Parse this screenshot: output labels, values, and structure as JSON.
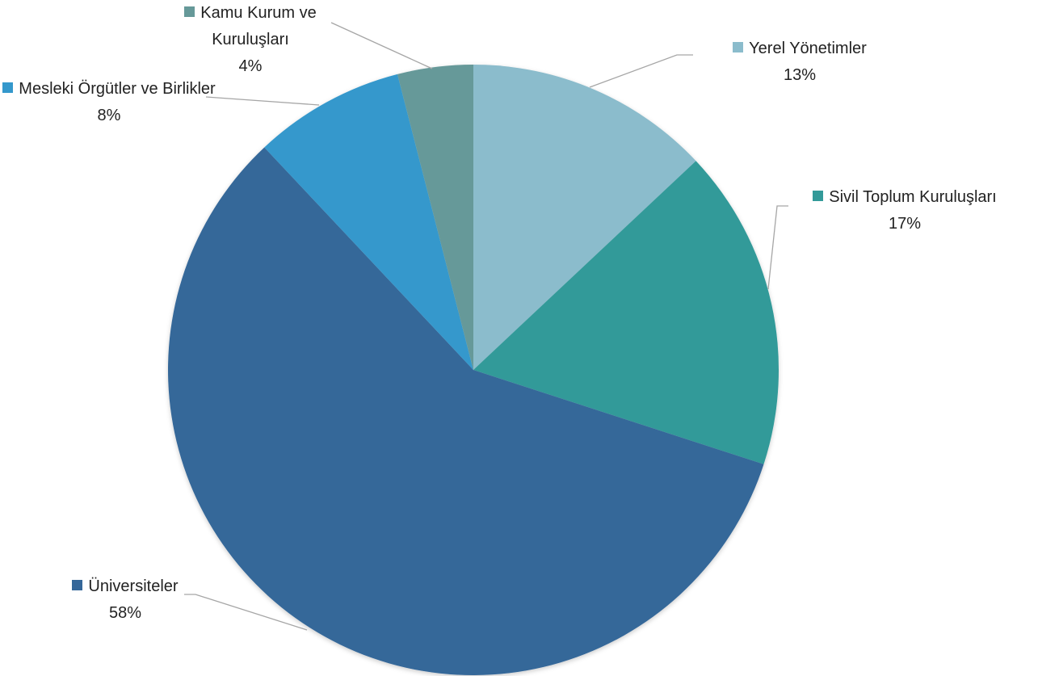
{
  "chart_data": {
    "type": "pie",
    "categories": [
      "Yerel Yönetimler",
      "Sivil Toplum Kuruluşları",
      "Üniversiteler",
      "Mesleki Örgütler ve Birlikler",
      "Kamu Kurum ve Kuruluşları"
    ],
    "values": [
      13,
      17,
      58,
      8,
      4
    ],
    "value_labels": [
      "13%",
      "17%",
      "58%",
      "8%",
      "4%"
    ],
    "colors": [
      "#8bbccc",
      "#339a99",
      "#356799",
      "#3498cc",
      "#669999"
    ]
  }
}
